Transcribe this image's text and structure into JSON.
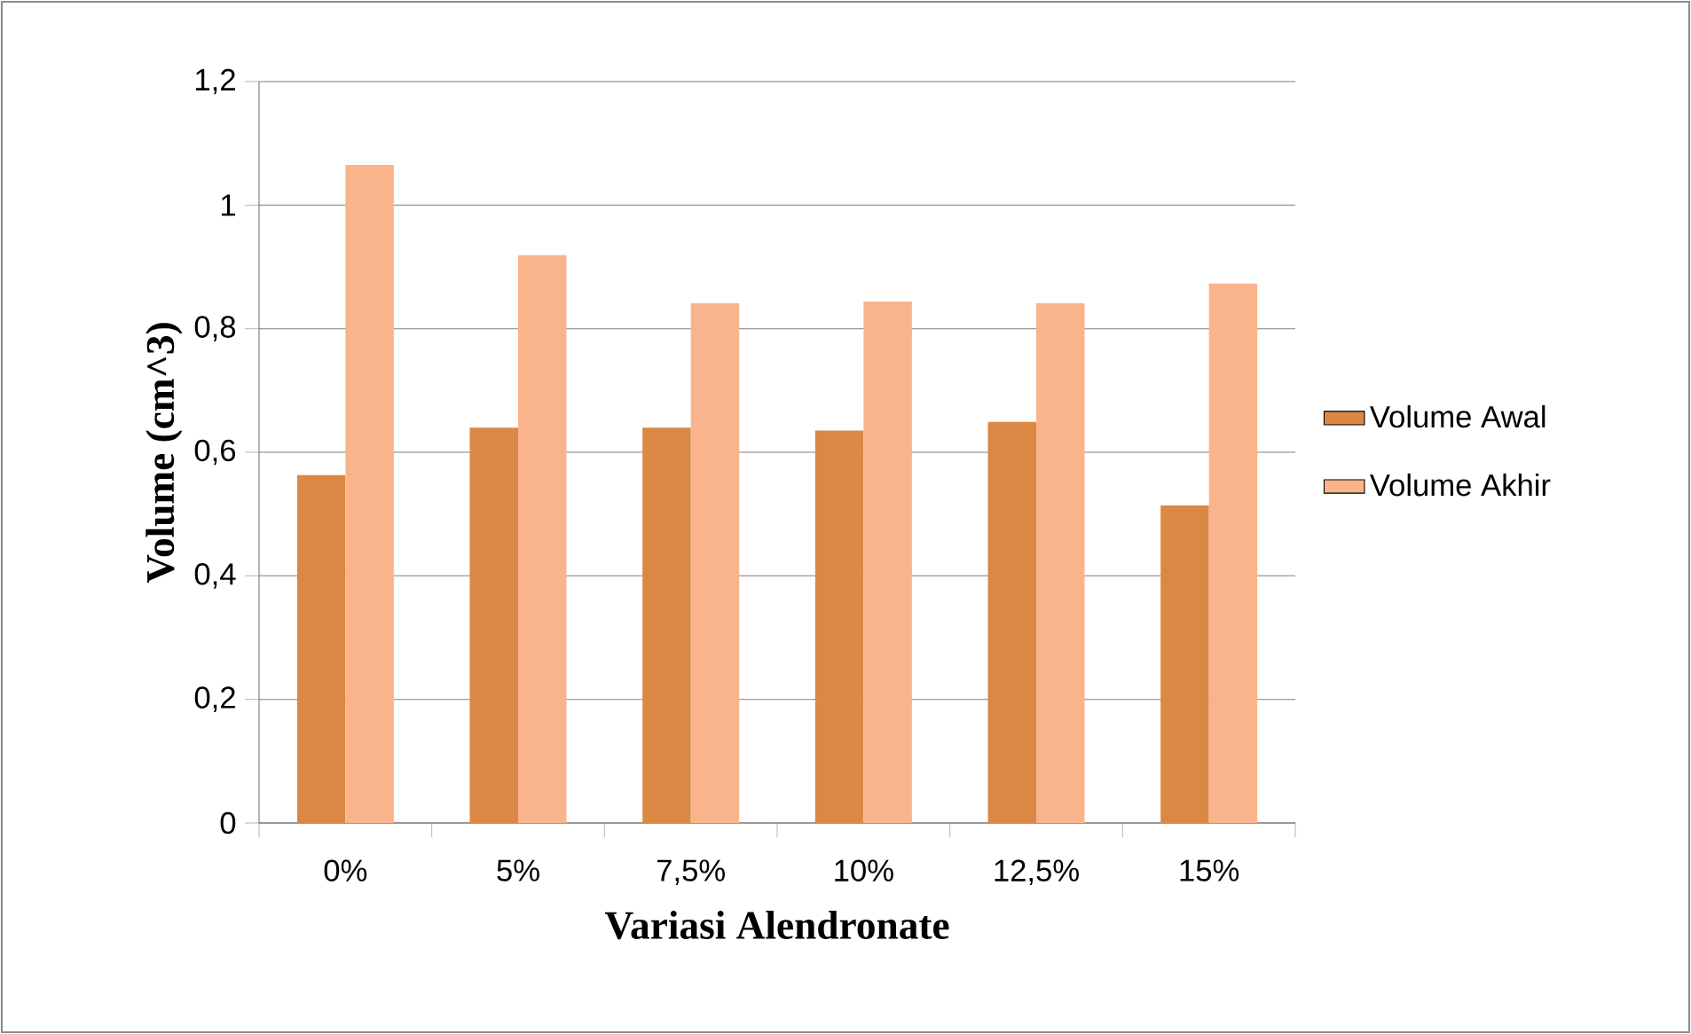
{
  "chart_data": {
    "type": "bar",
    "xlabel": "Variasi Alendronate",
    "ylabel": "Volume (cm^3)",
    "categories": [
      "0%",
      "5%",
      "7,5%",
      "10%",
      "12,5%",
      "15%"
    ],
    "series": [
      {
        "name": "Volume Awal",
        "color": "#db8844",
        "values": [
          0.563,
          0.64,
          0.64,
          0.635,
          0.649,
          0.514
        ]
      },
      {
        "name": "Volume Akhir",
        "color": "#f9b48c",
        "values": [
          1.065,
          0.919,
          0.841,
          0.844,
          0.841,
          0.873
        ]
      }
    ],
    "ylim": [
      0,
      1.2
    ],
    "yticks": [
      0,
      {
        "value": 0.2,
        "label": "0,2"
      },
      {
        "value": 0.4,
        "label": "0,4"
      },
      {
        "value": 0.6,
        "label": "0,6"
      },
      {
        "value": 0.8,
        "label": "0,8"
      },
      1,
      {
        "value": 1.2,
        "label": "1,2"
      }
    ],
    "grid": "y",
    "legend": "right"
  }
}
